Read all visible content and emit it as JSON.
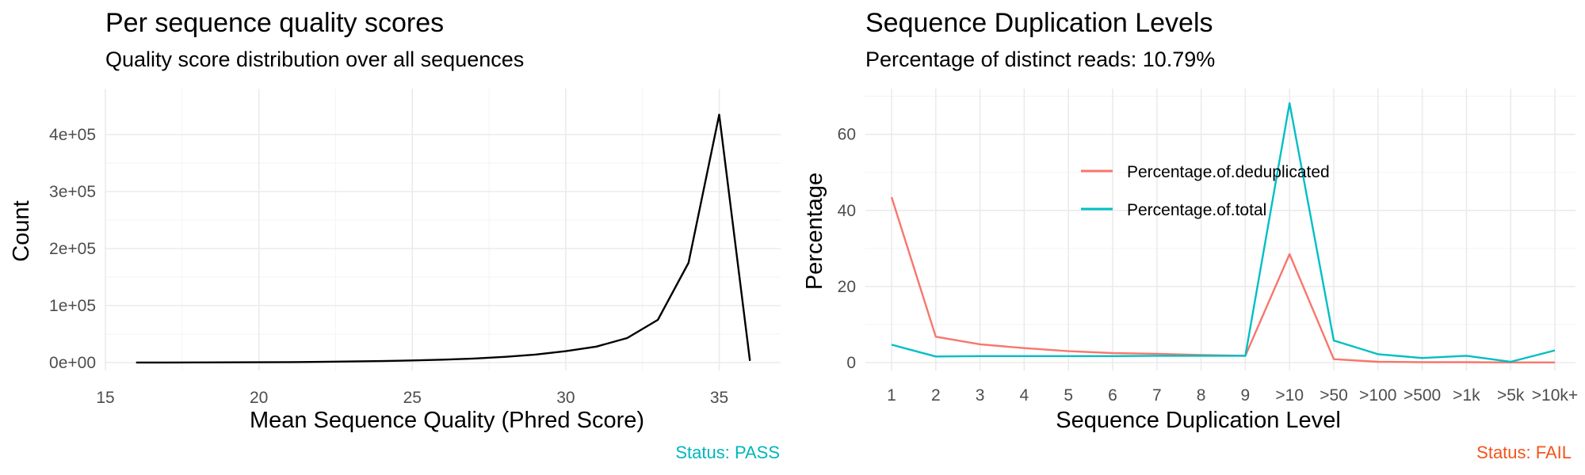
{
  "colors": {
    "quality_line": "#000000",
    "deduplicated": "#F8766D",
    "total": "#00BFC4",
    "status_pass": "#00B6BD",
    "status_fail": "#F2541B"
  },
  "chart_data": [
    {
      "type": "line",
      "title": "Per sequence quality scores",
      "subtitle": "Quality score distribution over all sequences",
      "xlabel": "Mean Sequence Quality (Phred Score)",
      "ylabel": "Count",
      "xlim": [
        15,
        37
      ],
      "ylim": [
        0,
        450000
      ],
      "x_ticks": [
        15,
        20,
        25,
        30,
        35
      ],
      "x_tick_labels": [
        "15",
        "20",
        "25",
        "30",
        "35"
      ],
      "y_ticks": [
        0,
        100000,
        200000,
        300000,
        400000
      ],
      "y_tick_labels": [
        "0e+00",
        "1e+05",
        "2e+05",
        "3e+05",
        "4e+05"
      ],
      "grid": true,
      "series": [
        {
          "x": [
            16,
            17,
            18,
            19,
            20,
            21,
            22,
            23,
            24,
            25,
            26,
            27,
            28,
            29,
            30,
            31,
            32,
            33,
            34,
            35,
            36
          ],
          "values": [
            100,
            150,
            250,
            400,
            600,
            900,
            1300,
            1900,
            2700,
            3800,
            5200,
            7100,
            10000,
            14000,
            20000,
            28000,
            43000,
            75000,
            175000,
            435000,
            3000
          ]
        }
      ],
      "status": "Status: PASS"
    },
    {
      "type": "line",
      "title": "Sequence Duplication Levels",
      "subtitle": "Percentage of distinct reads: 10.79%",
      "xlabel": "Sequence Duplication Level",
      "ylabel": "Percentage",
      "ylim": [
        0,
        72
      ],
      "categories": [
        "1",
        "2",
        "3",
        "4",
        "5",
        "6",
        "7",
        "8",
        "9",
        ">10",
        ">50",
        ">100",
        ">500",
        ">1k",
        ">5k",
        ">10k+"
      ],
      "y_ticks": [
        0,
        20,
        40,
        60
      ],
      "y_tick_labels": [
        "0",
        "20",
        "40",
        "60"
      ],
      "grid": true,
      "legend_position": "inside-top-center",
      "series": [
        {
          "name": "Percentage.of.deduplicated",
          "values": [
            43.5,
            6.8,
            4.8,
            3.8,
            3.0,
            2.5,
            2.3,
            2.0,
            1.8,
            28.5,
            0.9,
            0.2,
            0.1,
            0.1,
            0.05,
            0.05
          ]
        },
        {
          "name": "Percentage.of.total",
          "values": [
            4.7,
            1.6,
            1.7,
            1.7,
            1.7,
            1.7,
            1.8,
            1.8,
            1.8,
            68.2,
            5.8,
            2.2,
            1.2,
            1.8,
            0.2,
            3.2
          ]
        }
      ],
      "status": "Status: FAIL"
    }
  ]
}
